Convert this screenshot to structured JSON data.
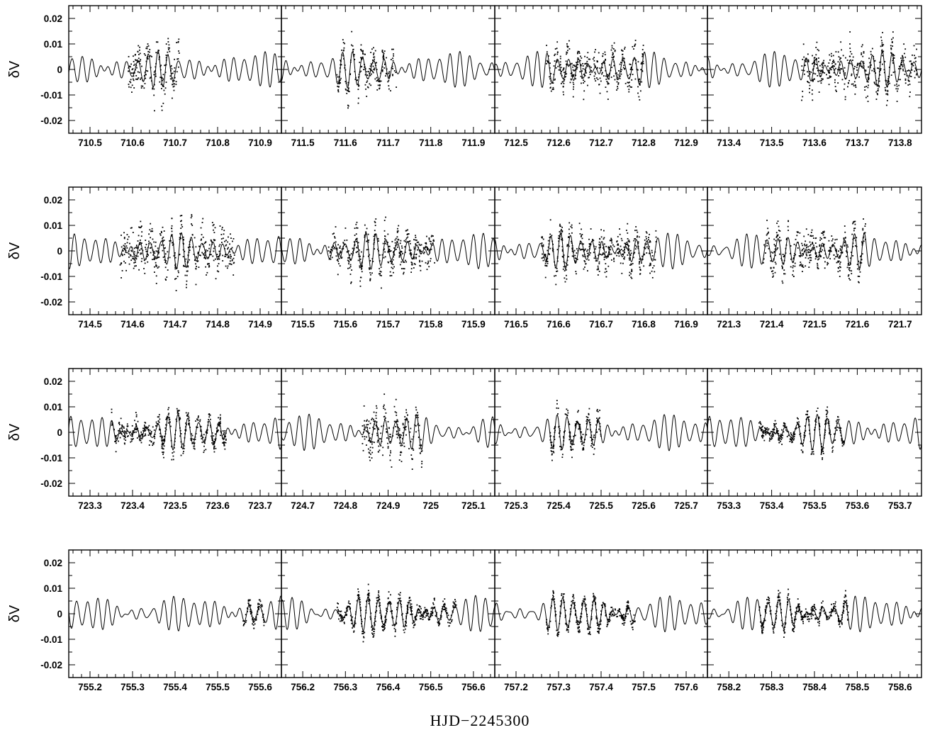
{
  "chart_data": {
    "type": "line",
    "layout": {
      "rows": 4,
      "cols": 4
    },
    "xlabel": "HJD−2245300",
    "ylabel": "δV",
    "y_ticks": [
      "0.02",
      "0.01",
      "0",
      "-0.01",
      "-0.02"
    ],
    "y_tick_values": [
      0.02,
      0.01,
      0,
      -0.01,
      -0.02
    ],
    "ylim": [
      -0.025,
      0.025
    ],
    "series": [
      {
        "name": "",
        "kind": "model-curve"
      },
      {
        "name": "",
        "kind": "observed-points"
      }
    ],
    "panels": [
      {
        "xlim": [
          710.45,
          710.95
        ],
        "x_ticks": [
          "710.5",
          "710.6",
          "710.7",
          "710.8",
          "710.9"
        ],
        "obs_range": [
          710.59,
          710.71
        ],
        "scatter": 0.006,
        "seed": 1
      },
      {
        "xlim": [
          711.45,
          711.95
        ],
        "x_ticks": [
          "711.5",
          "711.6",
          "711.7",
          "711.8",
          "711.9"
        ],
        "obs_range": [
          711.58,
          711.72
        ],
        "scatter": 0.005,
        "seed": 2
      },
      {
        "xlim": [
          712.45,
          712.95
        ],
        "x_ticks": [
          "712.5",
          "712.6",
          "712.7",
          "712.8",
          "712.9"
        ],
        "obs_range": [
          712.57,
          712.8
        ],
        "scatter": 0.005,
        "seed": 3
      },
      {
        "xlim": [
          713.35,
          713.85
        ],
        "x_ticks": [
          "713.4",
          "713.5",
          "713.6",
          "713.7",
          "713.8"
        ],
        "obs_range": [
          713.57,
          713.84
        ],
        "scatter": 0.006,
        "seed": 4
      },
      {
        "xlim": [
          714.45,
          714.95
        ],
        "x_ticks": [
          "714.5",
          "714.6",
          "714.7",
          "714.8",
          "714.9"
        ],
        "obs_range": [
          714.57,
          714.84
        ],
        "scatter": 0.006,
        "seed": 5
      },
      {
        "xlim": [
          715.45,
          715.95
        ],
        "x_ticks": [
          "715.5",
          "715.6",
          "715.7",
          "715.8",
          "715.9"
        ],
        "obs_range": [
          715.56,
          715.81
        ],
        "scatter": 0.005,
        "seed": 6
      },
      {
        "xlim": [
          716.45,
          716.95
        ],
        "x_ticks": [
          "716.5",
          "716.6",
          "716.7",
          "716.8",
          "716.9"
        ],
        "obs_range": [
          716.56,
          716.83
        ],
        "scatter": 0.005,
        "seed": 7
      },
      {
        "xlim": [
          721.25,
          721.75
        ],
        "x_ticks": [
          "721.3",
          "721.4",
          "721.5",
          "721.6",
          "721.7"
        ],
        "obs_range": [
          721.38,
          721.62
        ],
        "scatter": 0.005,
        "seed": 8
      },
      {
        "xlim": [
          723.25,
          723.75
        ],
        "x_ticks": [
          "723.3",
          "723.4",
          "723.5",
          "723.6",
          "723.7"
        ],
        "obs_range": [
          723.35,
          723.62
        ],
        "scatter": 0.003,
        "seed": 9
      },
      {
        "xlim": [
          724.65,
          725.15
        ],
        "x_ticks": [
          "724.7",
          "724.8",
          "724.9",
          "725",
          "725.1"
        ],
        "obs_range": [
          724.84,
          724.98
        ],
        "scatter": 0.006,
        "seed": 10
      },
      {
        "xlim": [
          725.25,
          725.75
        ],
        "x_ticks": [
          "725.3",
          "725.4",
          "725.5",
          "725.6",
          "725.7"
        ],
        "obs_range": [
          725.38,
          725.5
        ],
        "scatter": 0.003,
        "seed": 11
      },
      {
        "xlim": [
          753.25,
          753.75
        ],
        "x_ticks": [
          "753.3",
          "753.4",
          "753.5",
          "753.6",
          "753.7"
        ],
        "obs_range": [
          753.37,
          753.57
        ],
        "scatter": 0.002,
        "seed": 12
      },
      {
        "xlim": [
          755.15,
          755.65
        ],
        "x_ticks": [
          "755.2",
          "755.3",
          "755.4",
          "755.5",
          "755.6"
        ],
        "obs_range": [
          755.56,
          755.61
        ],
        "scatter": 0.002,
        "seed": 13
      },
      {
        "xlim": [
          756.15,
          756.65
        ],
        "x_ticks": [
          "756.2",
          "756.3",
          "756.4",
          "756.5",
          "756.6"
        ],
        "obs_range": [
          756.28,
          756.56
        ],
        "scatter": 0.002,
        "seed": 14
      },
      {
        "xlim": [
          757.15,
          757.65
        ],
        "x_ticks": [
          "757.2",
          "757.3",
          "757.4",
          "757.5",
          "757.6"
        ],
        "obs_range": [
          757.27,
          757.48
        ],
        "scatter": 0.002,
        "seed": 15
      },
      {
        "xlim": [
          758.15,
          758.65
        ],
        "x_ticks": [
          "758.2",
          "758.3",
          "758.4",
          "758.5",
          "758.6"
        ],
        "obs_range": [
          758.27,
          758.48
        ],
        "scatter": 0.002,
        "seed": 16
      }
    ]
  }
}
